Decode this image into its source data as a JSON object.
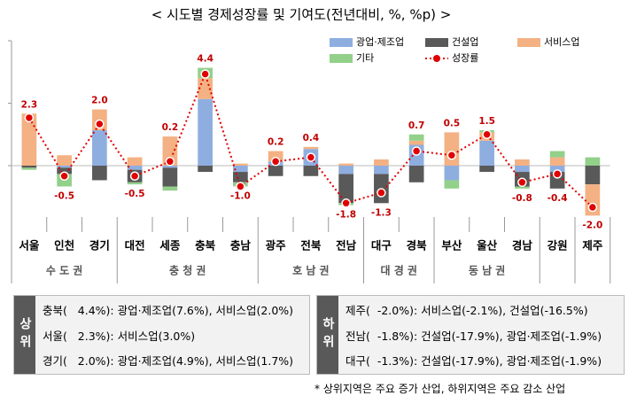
{
  "chart_data": {
    "type": "bar",
    "title": "< 시도별 경제성장률 및 기여도(전년대비, %, %p) >",
    "groups": [
      {
        "label": "수 도 권",
        "categories": [
          "서울",
          "인천",
          "경기"
        ]
      },
      {
        "label": "충 청 권",
        "categories": [
          "대전",
          "세종",
          "충북",
          "충남"
        ]
      },
      {
        "label": "호 남 권",
        "categories": [
          "광주",
          "전북",
          "전남"
        ]
      },
      {
        "label": "대 경 권",
        "categories": [
          "대구",
          "경북"
        ]
      },
      {
        "label": "동 남 권",
        "categories": [
          "부산",
          "울산",
          "경남"
        ]
      },
      {
        "label": null,
        "categories": [
          "강원"
        ]
      },
      {
        "label": null,
        "categories": [
          "제주"
        ]
      }
    ],
    "series": [
      {
        "name": "광업·제조업",
        "color": "#8eaee0",
        "values": [
          0,
          -0.1,
          1.7,
          -0.2,
          -0.1,
          3.2,
          -0.3,
          0.2,
          0.8,
          -0.4,
          -0.4,
          1.0,
          -0.7,
          1.2,
          -0.3,
          -0.3,
          0
        ]
      },
      {
        "name": "건설업",
        "color": "#595959",
        "values": [
          -0.1,
          -0.3,
          -0.7,
          -0.6,
          -0.9,
          -0.3,
          -0.5,
          -0.5,
          -0.5,
          -1.4,
          -1.4,
          -0.8,
          0,
          -0.3,
          -0.7,
          -0.8,
          -0.9
        ]
      },
      {
        "name": "서비스업",
        "color": "#f4b183",
        "values": [
          2.5,
          0.5,
          1.0,
          0.4,
          1.4,
          1.0,
          0.1,
          0.5,
          0.1,
          0.1,
          0.3,
          0.2,
          1.6,
          0.4,
          0.3,
          0.4,
          -1.5
        ]
      },
      {
        "name": "기타",
        "color": "#93d08a",
        "values": [
          -0.1,
          -0.6,
          0,
          -0.1,
          -0.2,
          0.5,
          -0.2,
          0,
          0,
          -0.1,
          0,
          0.3,
          -0.4,
          0.1,
          -0.1,
          0.3,
          0.4
        ]
      }
    ],
    "line": {
      "name": "성장률",
      "color": "#e00000",
      "values": [
        2.3,
        -0.5,
        2.0,
        -0.5,
        0.2,
        4.4,
        -1.0,
        0.2,
        0.4,
        -1.8,
        -1.3,
        0.7,
        0.5,
        1.5,
        -0.8,
        -0.4,
        -2.0
      ],
      "value_labels": [
        "2.3",
        "-0.5",
        "2.0",
        "-0.5",
        "0.2",
        "4.4",
        "-1.0",
        "0.2",
        "0.4",
        "-1.8",
        "-1.3",
        "0.7",
        "0.5",
        "1.5",
        "-0.8",
        "-0.4",
        "-2.0"
      ]
    },
    "ylim": [
      -2.5,
      6
    ],
    "yticks": [
      0,
      3,
      6
    ]
  },
  "tables": [
    {
      "heading": "상위",
      "rows": [
        "충북(   4.4%): 광업·제조업(7.6%), 서비스업(2.0%)",
        "서울(   2.3%): 서비스업(3.0%)",
        "경기(   2.0%): 광업·제조업(4.9%), 서비스업(1.7%)"
      ]
    },
    {
      "heading": "하위",
      "rows": [
        "제주(  -2.0%): 서비스업(-2.1%), 건설업(-16.5%)",
        "전남(  -1.8%): 건설업(-17.9%), 광업·제조업(-1.9%)",
        "대구(  -1.3%): 건설업(-17.9%), 광업·제조업(-1.9%)"
      ]
    }
  ],
  "note": "* 상위지역은 주요 증가 산업, 하위지역은 주요 감소 산업"
}
